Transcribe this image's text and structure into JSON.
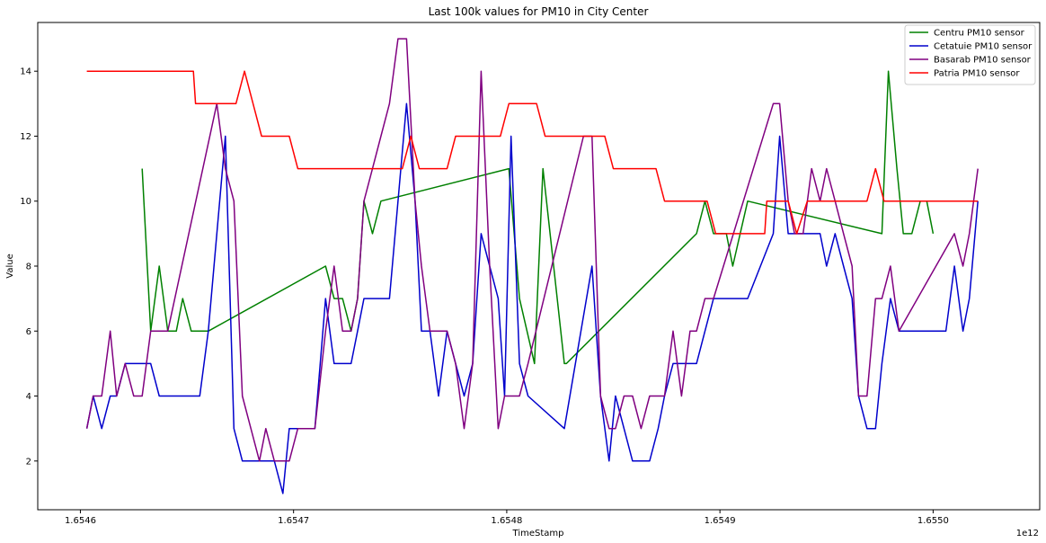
{
  "chart_data": {
    "type": "line",
    "title": "Last 100k values for PM10 in City Center",
    "xlabel": "TimeStamp",
    "ylabel": "Value",
    "x_offset_label": "1e12",
    "xlim": [
      1.65458,
      1.65505
    ],
    "ylim": [
      0.5,
      15.5
    ],
    "xticks": [
      1.6546,
      1.6547,
      1.6548,
      1.6549,
      1.655
    ],
    "xtick_labels": [
      "1.6546",
      "1.6547",
      "1.6548",
      "1.6549",
      "1.6550"
    ],
    "yticks": [
      2,
      4,
      6,
      8,
      10,
      12,
      14
    ],
    "ytick_labels": [
      "2",
      "4",
      "6",
      "8",
      "10",
      "12",
      "14"
    ],
    "grid": false,
    "legend_position": "top-right",
    "series": [
      {
        "name": "Centru PM10 sensor",
        "color": "#008000",
        "x": [
          1.654629,
          1.654633,
          1.654637,
          1.654641,
          1.654645,
          1.654648,
          1.654652,
          1.654656,
          1.65466,
          1.654715,
          1.654719,
          1.654723,
          1.654727,
          1.65473,
          1.654733,
          1.654737,
          1.654741,
          1.654801,
          1.654806,
          1.654813,
          1.654817,
          1.654827,
          1.654828,
          1.654889,
          1.654893,
          1.654897,
          1.654903,
          1.654906,
          1.654913,
          1.654976,
          1.654979,
          1.654983,
          1.654986,
          1.65499,
          1.654994,
          1.654997,
          1.655
        ],
        "y": [
          11,
          6,
          8,
          6,
          6,
          7,
          6,
          6,
          6,
          8,
          7,
          7,
          6,
          7,
          10,
          9,
          10,
          11,
          7,
          5,
          11,
          5,
          5,
          9,
          10,
          9,
          9,
          8,
          10,
          9,
          14,
          11,
          9,
          9,
          10,
          10,
          9
        ]
      },
      {
        "name": "Cetatuie PM10 sensor",
        "color": "#0000cc",
        "x": [
          1.654603,
          1.654606,
          1.65461,
          1.654614,
          1.654617,
          1.654621,
          1.654625,
          1.654629,
          1.654633,
          1.654637,
          1.654641,
          1.654645,
          1.654648,
          1.654652,
          1.654656,
          1.65466,
          1.654668,
          1.654672,
          1.654676,
          1.65468,
          1.654684,
          1.654687,
          1.654691,
          1.654695,
          1.654698,
          1.654702,
          1.654706,
          1.65471,
          1.654715,
          1.654719,
          1.654723,
          1.654727,
          1.65473,
          1.654733,
          1.654737,
          1.654741,
          1.654745,
          1.654749,
          1.654753,
          1.654757,
          1.65476,
          1.654764,
          1.654768,
          1.654772,
          1.654776,
          1.65478,
          1.654784,
          1.654788,
          1.654792,
          1.654796,
          1.654799,
          1.654802,
          1.654806,
          1.65481,
          1.654827,
          1.65484,
          1.654844,
          1.654848,
          1.654851,
          1.654855,
          1.654859,
          1.654863,
          1.654867,
          1.654871,
          1.654874,
          1.654878,
          1.654882,
          1.654886,
          1.654889,
          1.654893,
          1.654897,
          1.654913,
          1.654925,
          1.654928,
          1.654932,
          1.654935,
          1.654939,
          1.654943,
          1.654947,
          1.65495,
          1.654954,
          1.654958,
          1.654962,
          1.654965,
          1.654969,
          1.654973,
          1.654976,
          1.65498,
          1.654984,
          1.654988,
          1.654991,
          1.654995,
          1.654999,
          1.655003,
          1.655006,
          1.65501,
          1.655014,
          1.655017,
          1.655021
        ],
        "y": [
          3,
          4,
          3,
          4,
          4,
          5,
          5,
          5,
          5,
          4,
          4,
          4,
          4,
          4,
          4,
          6,
          12,
          3,
          2,
          2,
          2,
          2,
          2,
          1,
          3,
          3,
          3,
          3,
          7,
          5,
          5,
          5,
          6,
          7,
          7,
          7,
          7,
          10,
          13,
          10,
          6,
          6,
          4,
          6,
          5,
          4,
          5,
          9,
          8,
          7,
          4,
          12,
          5,
          4,
          3,
          8,
          4,
          2,
          4,
          3,
          2,
          2,
          2,
          3,
          4,
          5,
          5,
          5,
          5,
          6,
          7,
          7,
          9,
          12,
          9,
          9,
          9,
          9,
          9,
          8,
          9,
          8,
          7,
          4,
          3,
          3,
          5,
          7,
          6,
          6,
          6,
          6,
          6,
          6,
          6,
          8,
          6,
          7,
          10
        ]
      },
      {
        "name": "Basarab PM10 sensor",
        "color": "#800080",
        "x": [
          1.654603,
          1.654606,
          1.65461,
          1.654614,
          1.654617,
          1.654621,
          1.654625,
          1.654629,
          1.654633,
          1.654637,
          1.654641,
          1.654664,
          1.654668,
          1.654672,
          1.654676,
          1.65468,
          1.654684,
          1.654687,
          1.654691,
          1.654695,
          1.654698,
          1.654702,
          1.654706,
          1.65471,
          1.654715,
          1.654719,
          1.654723,
          1.654727,
          1.65473,
          1.654733,
          1.654737,
          1.654741,
          1.654745,
          1.654749,
          1.654753,
          1.654757,
          1.65476,
          1.654764,
          1.654768,
          1.654772,
          1.654776,
          1.65478,
          1.654784,
          1.654788,
          1.654792,
          1.654796,
          1.654799,
          1.654802,
          1.654806,
          1.65481,
          1.654836,
          1.65484,
          1.654844,
          1.654848,
          1.654851,
          1.654855,
          1.654859,
          1.654863,
          1.654867,
          1.654871,
          1.654874,
          1.654878,
          1.654882,
          1.654886,
          1.654889,
          1.654893,
          1.654897,
          1.654925,
          1.654928,
          1.654932,
          1.654935,
          1.654939,
          1.654943,
          1.654947,
          1.65495,
          1.654954,
          1.654958,
          1.654962,
          1.654965,
          1.654969,
          1.654973,
          1.654976,
          1.65498,
          1.654984,
          1.65501,
          1.655014,
          1.655017,
          1.655021
        ],
        "y": [
          3,
          4,
          4,
          6,
          4,
          5,
          4,
          4,
          6,
          6,
          6,
          13,
          11,
          10,
          4,
          3,
          2,
          3,
          2,
          2,
          2,
          3,
          3,
          3,
          6,
          8,
          6,
          6,
          7,
          10,
          11,
          12,
          13,
          15,
          15,
          10,
          8,
          6,
          6,
          6,
          5,
          3,
          5,
          14,
          8,
          3,
          4,
          4,
          4,
          5,
          12,
          12,
          4,
          3,
          3,
          4,
          4,
          3,
          4,
          4,
          4,
          6,
          4,
          6,
          6,
          7,
          7,
          13,
          13,
          10,
          9,
          9,
          11,
          10,
          11,
          10,
          9,
          8,
          4,
          4,
          7,
          7,
          8,
          6,
          9,
          8,
          9,
          11
        ]
      },
      {
        "name": "Patria PM10 sensor",
        "color": "#ff0000",
        "x": [
          1.654603,
          1.654653,
          1.654654,
          1.654673,
          1.654677,
          1.654681,
          1.654685,
          1.654698,
          1.654702,
          1.654751,
          1.654755,
          1.654759,
          1.654772,
          1.654776,
          1.654797,
          1.654801,
          1.654814,
          1.654818,
          1.654846,
          1.65485,
          1.65487,
          1.654874,
          1.654894,
          1.654898,
          1.654921,
          1.654922,
          1.654932,
          1.654936,
          1.654941,
          1.654969,
          1.654973,
          1.654977,
          1.655021
        ],
        "y": [
          14,
          14,
          13,
          13,
          14,
          13,
          12,
          12,
          11,
          11,
          12,
          11,
          11,
          12,
          12,
          13,
          13,
          12,
          12,
          11,
          11,
          10,
          10,
          9,
          9,
          10,
          10,
          9,
          10,
          10,
          11,
          10,
          10
        ]
      }
    ]
  }
}
